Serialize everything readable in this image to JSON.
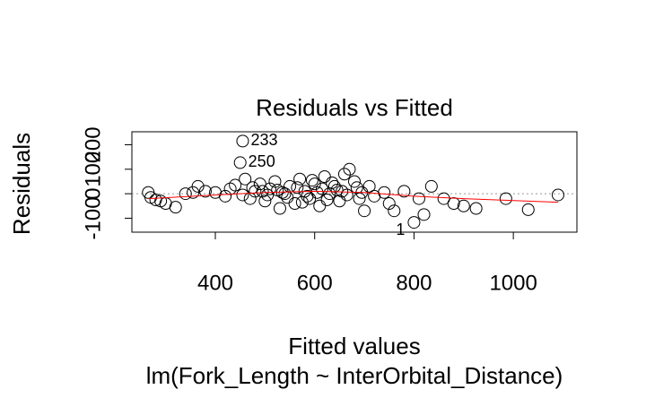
{
  "chart_data": {
    "type": "scatter",
    "title": "Residuals vs Fitted",
    "x_label": "Fitted values",
    "subtitle": "lm(Fork_Length ~ InterOrbital_Distance)",
    "y_label": "Residuals",
    "xlim": [
      232,
      1128
    ],
    "ylim": [
      -157,
      253
    ],
    "xticks": [
      400,
      600,
      800,
      1000
    ],
    "yticks": [
      -100,
      0,
      100,
      200
    ],
    "color": "#000000",
    "x": [
      455,
      450,
      800,
      265,
      270,
      280,
      290,
      300,
      320,
      340,
      355,
      365,
      380,
      400,
      420,
      430,
      440,
      460,
      470,
      480,
      490,
      500,
      510,
      520,
      530,
      540,
      550,
      560,
      570,
      580,
      590,
      600,
      610,
      620,
      630,
      640,
      650,
      660,
      670,
      680,
      690,
      700,
      710,
      720,
      740,
      750,
      760,
      780,
      810,
      820,
      835,
      860,
      880,
      900,
      925,
      985,
      1030,
      1090,
      505,
      525,
      545,
      565,
      585,
      605,
      625,
      645,
      665,
      615,
      535,
      495,
      455,
      475,
      575,
      595,
      635,
      655,
      685,
      695
    ],
    "values": [
      215,
      127,
      -117,
      5,
      -15,
      -25,
      -30,
      -40,
      -55,
      0,
      5,
      30,
      10,
      5,
      -10,
      20,
      35,
      60,
      -20,
      10,
      40,
      -30,
      20,
      50,
      -60,
      0,
      30,
      -40,
      60,
      10,
      -20,
      40,
      -50,
      70,
      0,
      30,
      -30,
      80,
      100,
      50,
      -20,
      -70,
      30,
      -10,
      5,
      -40,
      -70,
      10,
      -20,
      -85,
      30,
      -20,
      -40,
      -50,
      -60,
      -20,
      -65,
      -5,
      -5,
      15,
      -15,
      25,
      -10,
      5,
      -25,
      15,
      -5,
      20,
      5,
      10,
      -5,
      25,
      -35,
      55,
      45,
      10,
      25,
      5
    ],
    "point_labels": [
      "233",
      "250",
      "1",
      null,
      null,
      null,
      null,
      null,
      null,
      null,
      null,
      null,
      null,
      null,
      null,
      null,
      null,
      null,
      null,
      null,
      null,
      null,
      null,
      null,
      null,
      null,
      null,
      null,
      null,
      null,
      null,
      null,
      null,
      null,
      null,
      null,
      null,
      null,
      null,
      null,
      null,
      null,
      null,
      null,
      null,
      null,
      null,
      null,
      null,
      null,
      null,
      null,
      null,
      null,
      null,
      null,
      null,
      null,
      null,
      null,
      null,
      null,
      null,
      null,
      null,
      null,
      null,
      null,
      null,
      null,
      null,
      null,
      null,
      null,
      null,
      null,
      null,
      null
    ],
    "smooth": {
      "color": "#ff0000",
      "x": [
        265,
        400,
        500,
        600,
        700,
        800,
        900,
        1090
      ],
      "values": [
        -20,
        -5,
        5,
        10,
        5,
        -10,
        -20,
        -35
      ]
    },
    "reference_line": {
      "value": 0,
      "color": "#999999"
    }
  }
}
